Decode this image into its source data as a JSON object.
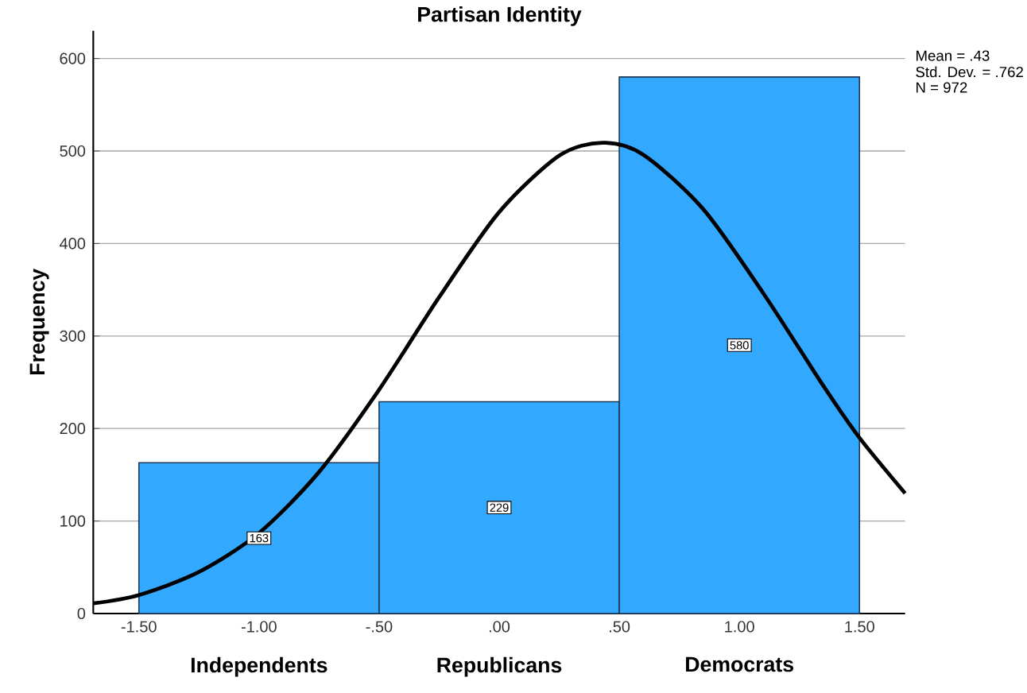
{
  "chart_data": {
    "type": "histogram",
    "title": "Partisan Identity",
    "ylabel": "Frequency",
    "bins": [
      -1.5,
      -0.5,
      0.5,
      1.5
    ],
    "values": [
      163,
      229,
      580
    ],
    "value_labels": [
      "163",
      "229",
      "580"
    ],
    "color": "#33a8ff",
    "series": [
      {
        "type": "line",
        "color": "#000000",
        "x": [
          -1.69,
          -1.5,
          -1.25,
          -1.0,
          -0.75,
          -0.5,
          -0.25,
          0.0,
          0.25,
          0.43,
          0.6,
          0.85,
          1.1,
          1.35,
          1.5,
          1.69
        ],
        "values": [
          11,
          20,
          45,
          87,
          153,
          242,
          342,
          434,
          495,
          509,
          496,
          437,
          346,
          246,
          190,
          130
        ]
      }
    ],
    "xlim": [
      -1.69,
      1.69
    ],
    "ylim": [
      0,
      630
    ],
    "xticks": [
      {
        "value": -1.5,
        "label": "-1.50"
      },
      {
        "value": -1.0,
        "label": "-1.00"
      },
      {
        "value": -0.5,
        "label": "-.50"
      },
      {
        "value": 0,
        "label": ".00"
      },
      {
        "value": 0.5,
        "label": ".50"
      },
      {
        "value": 1.0,
        "label": "1.00"
      },
      {
        "value": 1.5,
        "label": "1.50"
      }
    ],
    "yticks": [
      0,
      100,
      200,
      300,
      400,
      500,
      600
    ],
    "grid": "y",
    "annotations": [
      {
        "text": "Independents",
        "x": -1.0,
        "y": 0
      },
      {
        "text": "Republicans",
        "x": 0.0,
        "y": 0
      },
      {
        "text": "Democrats",
        "x": 1.0,
        "y": 0
      },
      "Mean = .43",
      "Std. Dev. = .762",
      "N = 972"
    ]
  }
}
